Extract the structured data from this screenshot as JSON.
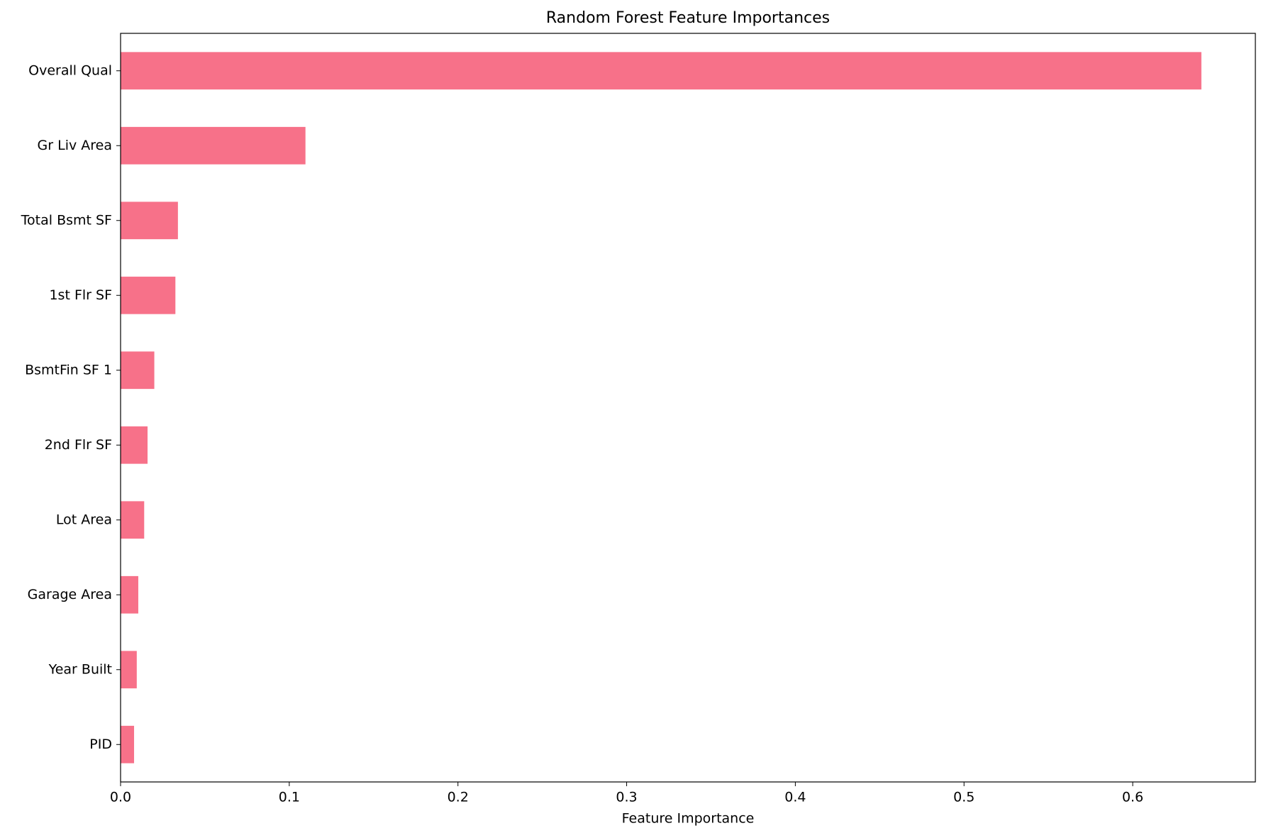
{
  "chart_data": {
    "type": "barh",
    "title": "Random Forest Feature Importances",
    "x_label": "Feature Importance",
    "categories": [
      "Overall Qual",
      "Gr Liv Area",
      "Total Bsmt SF",
      "1st Flr SF",
      "BsmtFin SF 1",
      "2nd Flr SF",
      "Lot Area",
      "Garage Area",
      "Year Built",
      "PID"
    ],
    "values": [
      0.6407,
      0.1096,
      0.034,
      0.0325,
      0.02,
      0.016,
      0.014,
      0.0105,
      0.0096,
      0.008
    ],
    "color": "#f77189",
    "xlim": [
      0,
      0.6727
    ],
    "xticks": [
      {
        "value": 0,
        "label": "0.0"
      },
      0.1,
      0.2,
      0.3,
      0.4,
      0.5,
      0.6
    ]
  }
}
